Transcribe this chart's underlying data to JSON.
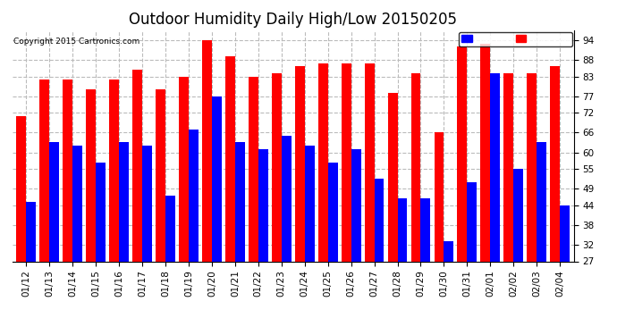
{
  "title": "Outdoor Humidity Daily High/Low 20150205",
  "copyright": "Copyright 2015 Cartronics.com",
  "dates": [
    "01/12",
    "01/13",
    "01/14",
    "01/15",
    "01/16",
    "01/17",
    "01/18",
    "01/19",
    "01/20",
    "01/21",
    "01/22",
    "01/23",
    "01/24",
    "01/25",
    "01/26",
    "01/27",
    "01/28",
    "01/29",
    "01/30",
    "01/31",
    "02/01",
    "02/02",
    "02/03",
    "02/04"
  ],
  "high": [
    71,
    82,
    82,
    79,
    82,
    85,
    79,
    83,
    94,
    89,
    83,
    84,
    86,
    87,
    87,
    87,
    78,
    84,
    66,
    92,
    93,
    84,
    84,
    86
  ],
  "low": [
    45,
    63,
    62,
    57,
    63,
    62,
    47,
    67,
    77,
    63,
    61,
    65,
    62,
    57,
    61,
    52,
    46,
    46,
    33,
    51,
    84,
    55,
    63,
    44
  ],
  "y_ticks": [
    27,
    32,
    38,
    44,
    49,
    55,
    60,
    66,
    72,
    77,
    83,
    88,
    94
  ],
  "ymin": 27,
  "ylim": [
    27,
    97
  ],
  "bg_color": "#ffffff",
  "high_color": "#ff0000",
  "low_color": "#0000ff",
  "bar_width": 0.42,
  "title_fontsize": 12,
  "tick_fontsize": 7.5
}
